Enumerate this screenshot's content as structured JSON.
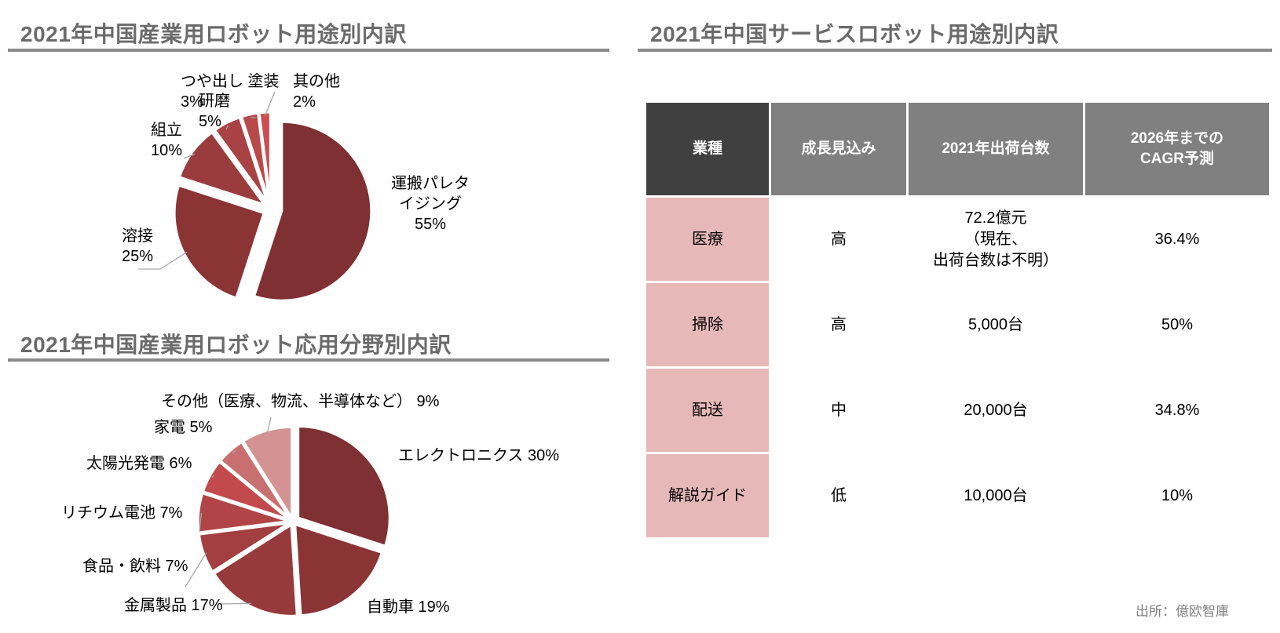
{
  "chart_data": [
    {
      "type": "pie",
      "title": "2021年中国産業用ロボット用途別内訳",
      "slices": [
        {
          "label": "運搬パレタイジング",
          "label_lines": [
            "運搬パレタ",
            "イジング"
          ],
          "value": 55,
          "value_label": "55%",
          "color": "#7f3032"
        },
        {
          "label": "溶接",
          "label_lines": [
            "溶接"
          ],
          "value": 25,
          "value_label": "25%",
          "color": "#8b3436"
        },
        {
          "label": "組立",
          "label_lines": [
            "組立"
          ],
          "value": 10,
          "value_label": "10%",
          "color": "#9a3c3e"
        },
        {
          "label": "研磨",
          "label_lines": [
            "研磨"
          ],
          "value": 5,
          "value_label": "5%",
          "color": "#a84244"
        },
        {
          "label": "つや出し 塗装",
          "label_lines": [
            "つや出し 塗装"
          ],
          "value": 3,
          "value_label": "3%",
          "color": "#b84a4c"
        },
        {
          "label": "其の他",
          "label_lines": [
            "其の他"
          ],
          "value": 2,
          "value_label": "2%",
          "color": "#cc4e50"
        }
      ]
    },
    {
      "type": "pie",
      "title": "2021年中国産業用ロボット応用分野別内訳",
      "slices": [
        {
          "label": "エレクトロニクス",
          "value": 30,
          "value_label": "30%",
          "color": "#7f3032"
        },
        {
          "label": "自動車",
          "value": 19,
          "value_label": "19%",
          "color": "#8b3436"
        },
        {
          "label": "金属製品",
          "value": 17,
          "value_label": "17%",
          "color": "#963a3c"
        },
        {
          "label": "食品・飲料",
          "value": 7,
          "value_label": "7%",
          "color": "#a33f41"
        },
        {
          "label": "リチウム電池",
          "value": 7,
          "value_label": "7%",
          "color": "#b04446"
        },
        {
          "label": "太陽光発電",
          "value": 6,
          "value_label": "6%",
          "color": "#c24a4c"
        },
        {
          "label": "家電",
          "value": 5,
          "value_label": "5%",
          "color": "#c87070"
        },
        {
          "label": "その他（医療、物流、半導体など）",
          "value": 9,
          "value_label": "9%",
          "color": "#d49392"
        }
      ]
    }
  ],
  "table": {
    "title": "2021年中国サービスロボット用途別内訳",
    "headers": [
      "業種",
      "成長見込み",
      "2021年出荷台数",
      "2026年までの\nCAGR予測"
    ],
    "rows": [
      [
        "医療",
        "高",
        "72.2億元\n（現在、\n出荷台数は不明）",
        "36.4%"
      ],
      [
        "掃除",
        "高",
        "5,000台",
        "50%"
      ],
      [
        "配送",
        "中",
        "20,000台",
        "34.8%"
      ],
      [
        "解説ガイド",
        "低",
        "10,000台",
        "10%"
      ]
    ]
  },
  "source": "出所：億欧智庫",
  "colors": {
    "title_text": "#6b6b6b",
    "rule": "#8a8a8a",
    "table_header": "#808080",
    "table_header_first": "#404040",
    "table_first_col": "#e6b8b8"
  }
}
